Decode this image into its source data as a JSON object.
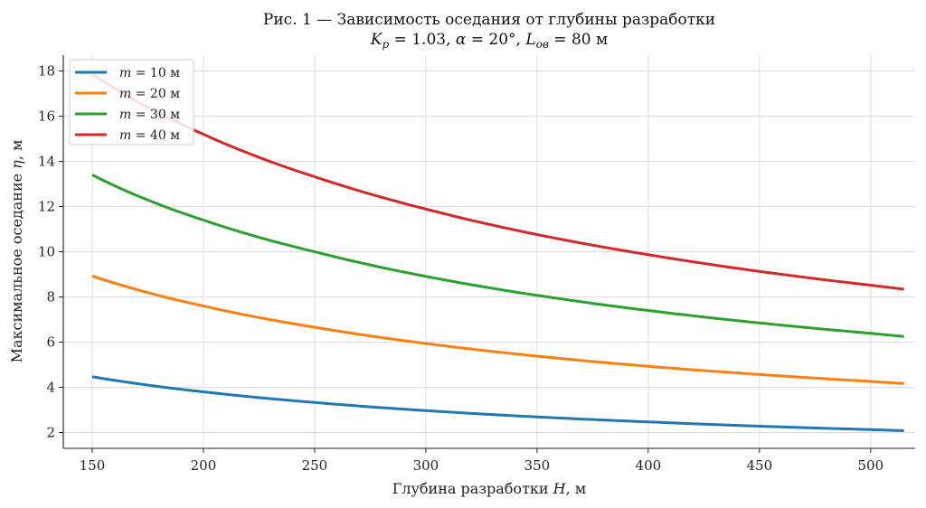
{
  "chart_data": {
    "type": "line",
    "title": "Рис. 1 — Зависимость оседания от глубины разработки",
    "subtitle": {
      "k_symbol": "K",
      "k_sub": "p",
      "k_value": " = 1.03,  ",
      "alpha_symbol": "α",
      "alpha_value": " = 20°,  ",
      "l_symbol": "L",
      "l_sub": "ов",
      "l_value": " = 80 м"
    },
    "xlabel": {
      "text": "Глубина разработки ",
      "var": "H",
      "unit": ", м"
    },
    "ylabel": {
      "text": "Максимальное оседание ",
      "var": "η",
      "unit": ", м"
    },
    "xlim": [
      137,
      520
    ],
    "ylim": [
      1.3,
      18.7
    ],
    "xticks": [
      150,
      200,
      250,
      300,
      350,
      400,
      450,
      500
    ],
    "yticks": [
      2,
      4,
      6,
      8,
      10,
      12,
      14,
      16,
      18
    ],
    "grid": true,
    "legend_position": "top-left",
    "x": [
      150,
      200,
      250,
      300,
      350,
      400,
      450,
      500,
      515
    ],
    "series": [
      {
        "name": "m = 10 м",
        "var": "m",
        "label": " = 10 м",
        "color": "#1f77b4",
        "values": [
          4.47,
          3.8,
          3.33,
          2.97,
          2.69,
          2.47,
          2.28,
          2.13,
          2.08
        ]
      },
      {
        "name": "m = 20 м",
        "var": "m",
        "label": " = 20 м",
        "color": "#ff7f0e",
        "values": [
          8.93,
          7.6,
          6.66,
          5.94,
          5.38,
          4.93,
          4.57,
          4.26,
          4.17
        ]
      },
      {
        "name": "m = 30 м",
        "var": "m",
        "label": " = 30 м",
        "color": "#2ca02c",
        "values": [
          13.4,
          11.4,
          10.0,
          8.91,
          8.07,
          7.4,
          6.85,
          6.39,
          6.25
        ]
      },
      {
        "name": "m = 40 м",
        "var": "m",
        "label": " = 40 м",
        "color": "#d62728",
        "values": [
          17.87,
          15.2,
          13.32,
          11.89,
          10.76,
          9.87,
          9.13,
          8.52,
          8.34
        ]
      }
    ]
  }
}
